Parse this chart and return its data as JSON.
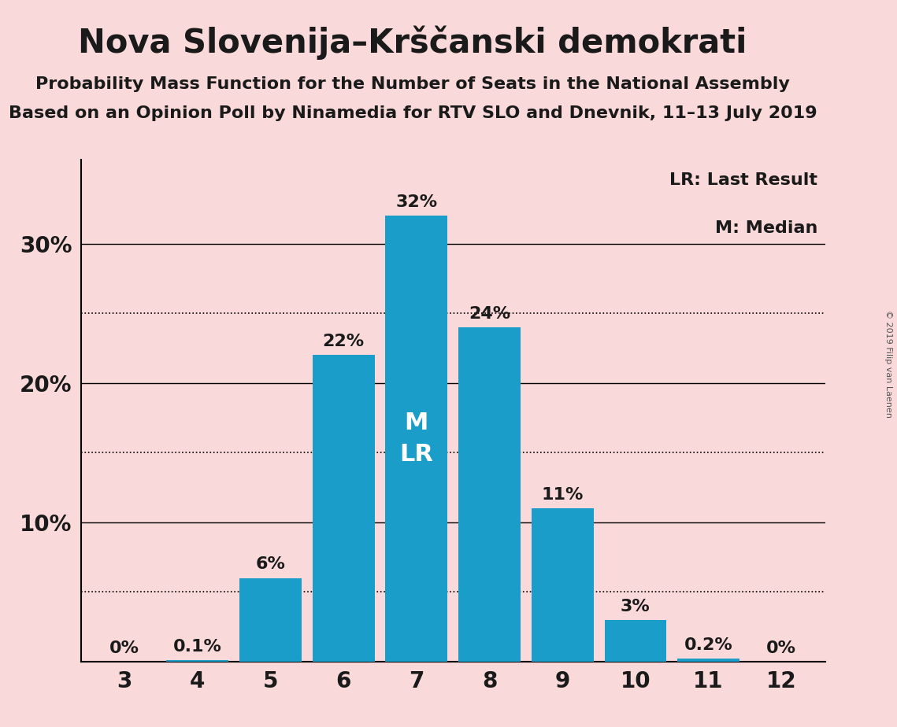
{
  "title": "Nova Slovenija–Krščanski demokrati",
  "subtitle1": "Probability Mass Function for the Number of Seats in the National Assembly",
  "subtitle2": "Based on an Opinion Poll by Ninamedia for RTV SLO and Dnevnik, 11–13 July 2019",
  "copyright": "© 2019 Filip van Laenen",
  "seats": [
    3,
    4,
    5,
    6,
    7,
    8,
    9,
    10,
    11,
    12
  ],
  "probabilities": [
    0.0,
    0.1,
    6.0,
    22.0,
    32.0,
    24.0,
    11.0,
    3.0,
    0.2,
    0.0
  ],
  "labels": [
    "0%",
    "0.1%",
    "6%",
    "22%",
    "32%",
    "24%",
    "11%",
    "3%",
    "0.2%",
    "0%"
  ],
  "bar_color": "#1a9dc8",
  "background_color": "#f9d9d9",
  "text_color": "#1a1a1a",
  "label_color_inside": "#f0f0f0",
  "ylim": [
    0,
    36
  ],
  "xlim": [
    2.4,
    12.6
  ],
  "median_seat": 7,
  "last_result_seat": 7,
  "legend_lr": "LR: Last Result",
  "legend_m": "M: Median",
  "solid_yticks": [
    10,
    20,
    30
  ],
  "solid_ytick_labels": [
    "10%",
    "20%",
    "30%"
  ],
  "dotted_lines": [
    5,
    15,
    25
  ],
  "bar_width": 0.85,
  "title_fontsize": 30,
  "subtitle_fontsize": 16,
  "tick_fontsize": 20,
  "label_fontsize": 16,
  "legend_fontsize": 16,
  "ml_fontsize": 22
}
